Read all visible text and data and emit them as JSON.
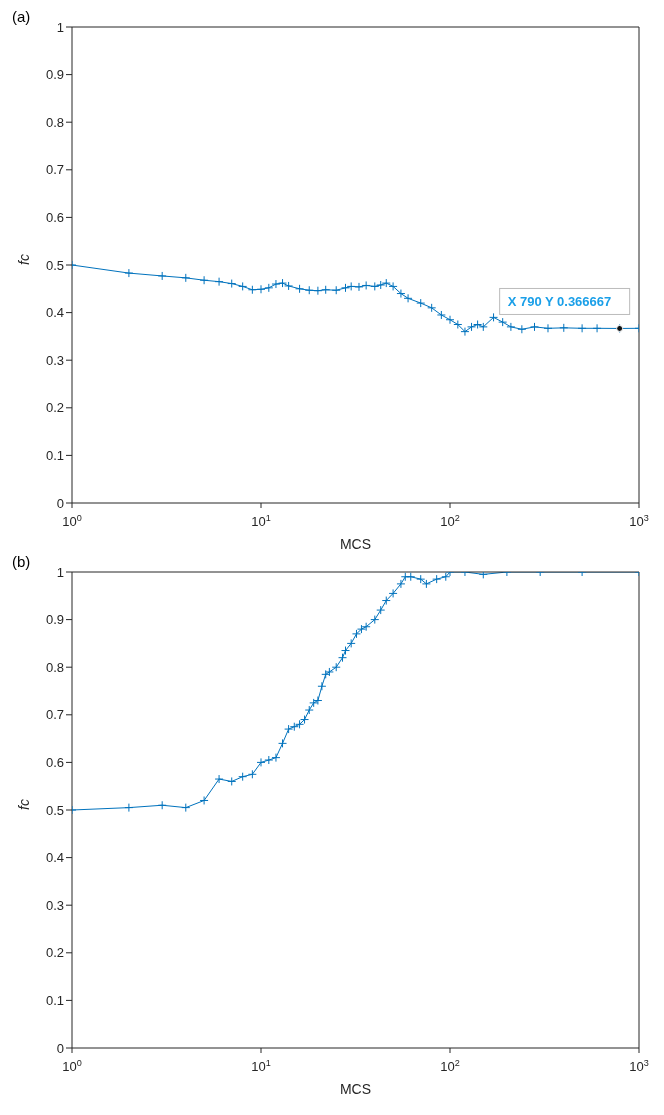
{
  "chart_data": [
    {
      "type": "line",
      "title": "(a)",
      "xlabel": "MCS",
      "ylabel": "fc",
      "log": "x",
      "marker": "cross",
      "line_style": "solid",
      "xlim": [
        1,
        1000
      ],
      "xticks": [
        {
          "value": 1,
          "label": "10$^{0}$"
        },
        {
          "value": 10,
          "label": "10$^{1}$"
        },
        {
          "value": 100,
          "label": "10$^{2}$"
        },
        {
          "value": 1000,
          "label": "10$^{3}$"
        }
      ],
      "ylim": [
        0,
        1
      ],
      "yticks": [
        0,
        0.1,
        0.2,
        0.3,
        0.4,
        0.5,
        0.6,
        0.7,
        0.8,
        0.9,
        1
      ],
      "annotations": [
        {
          "text": "X 790 Y 0.366667",
          "x": 790,
          "y": 0.366667
        }
      ],
      "series": [
        {
          "color": "#0072bd",
          "x": [
            1,
            2,
            3,
            4,
            5,
            6,
            7,
            8,
            9,
            10,
            11,
            12,
            13,
            14,
            16,
            18,
            20,
            22,
            25,
            28,
            30,
            33,
            36,
            40,
            43,
            46,
            50,
            55,
            60,
            70,
            80,
            90,
            100,
            110,
            120,
            130,
            140,
            150,
            170,
            190,
            210,
            240,
            280,
            330,
            400,
            500,
            600,
            790,
            1000
          ],
          "values": [
            0.5,
            0.483,
            0.477,
            0.473,
            0.468,
            0.465,
            0.461,
            0.455,
            0.448,
            0.449,
            0.452,
            0.46,
            0.462,
            0.456,
            0.45,
            0.447,
            0.446,
            0.448,
            0.447,
            0.452,
            0.455,
            0.454,
            0.457,
            0.455,
            0.458,
            0.462,
            0.455,
            0.44,
            0.43,
            0.42,
            0.41,
            0.395,
            0.385,
            0.375,
            0.36,
            0.37,
            0.375,
            0.37,
            0.39,
            0.38,
            0.37,
            0.365,
            0.37,
            0.367,
            0.368,
            0.367,
            0.367,
            0.366667,
            0.367
          ]
        }
      ]
    },
    {
      "type": "line",
      "title": "(b)",
      "xlabel": "MCS",
      "ylabel": "fc",
      "log": "x",
      "marker": "cross",
      "line_style": "solid",
      "xlim": [
        1,
        1000
      ],
      "xticks": [
        {
          "value": 1,
          "label": "10$^{0}$"
        },
        {
          "value": 10,
          "label": "10$^{1}$"
        },
        {
          "value": 100,
          "label": "10$^{2}$"
        },
        {
          "value": 1000,
          "label": "10$^{3}$"
        }
      ],
      "ylim": [
        0,
        1
      ],
      "yticks": [
        0,
        0.1,
        0.2,
        0.3,
        0.4,
        0.5,
        0.6,
        0.7,
        0.8,
        0.9,
        1
      ],
      "series": [
        {
          "color": "#0072bd",
          "x": [
            1,
            2,
            3,
            4,
            5,
            6,
            7,
            8,
            9,
            10,
            11,
            12,
            13,
            14,
            15,
            16,
            17,
            18,
            19,
            20,
            21,
            22,
            23,
            25,
            27,
            28,
            30,
            32,
            34,
            36,
            40,
            43,
            46,
            50,
            55,
            58,
            62,
            70,
            75,
            85,
            95,
            100,
            120,
            150,
            200,
            300,
            500,
            1000
          ],
          "values": [
            0.5,
            0.505,
            0.51,
            0.505,
            0.52,
            0.565,
            0.56,
            0.57,
            0.575,
            0.6,
            0.605,
            0.61,
            0.64,
            0.67,
            0.675,
            0.68,
            0.69,
            0.71,
            0.725,
            0.73,
            0.76,
            0.785,
            0.79,
            0.8,
            0.82,
            0.835,
            0.85,
            0.87,
            0.88,
            0.885,
            0.9,
            0.92,
            0.94,
            0.955,
            0.975,
            0.99,
            0.99,
            0.985,
            0.975,
            0.985,
            0.99,
            1,
            1,
            0.995,
            1,
            1,
            1,
            1
          ]
        }
      ]
    }
  ]
}
